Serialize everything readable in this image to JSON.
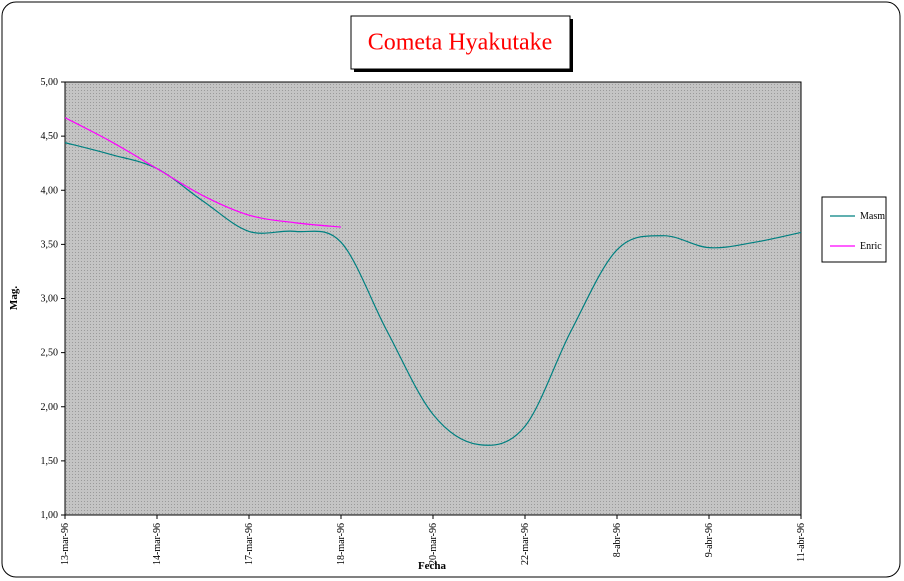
{
  "chart_data": {
    "type": "line",
    "title": "Cometa Hyakutake",
    "x_label": "Fecha",
    "y_label": "Mag.",
    "categories": [
      "13-mar-96",
      null,
      "14-mar-96",
      null,
      "17-mar-96",
      null,
      "18-mar-96",
      null,
      "20-mar-96",
      null,
      "22-mar-96",
      null,
      "8-abr-96",
      null,
      "9-abr-96",
      null,
      "11-abr-96"
    ],
    "series": [
      {
        "name": "Masm",
        "color": "#008080",
        "values": [
          4.44,
          4.33,
          4.2,
          3.9,
          3.62,
          3.62,
          3.52,
          2.7,
          1.93,
          1.65,
          1.82,
          2.7,
          3.45,
          3.58,
          3.47,
          3.52,
          3.61
        ]
      },
      {
        "name": "Enric",
        "color": "#ff00ff",
        "values": [
          4.67,
          4.45,
          4.2,
          3.95,
          3.77,
          3.7,
          3.66,
          null,
          null,
          null,
          null,
          null,
          null,
          null,
          null,
          null,
          null
        ]
      }
    ],
    "ylim": [
      1,
      5
    ],
    "yticks": [
      {
        "value": 1,
        "label": "1,00"
      },
      {
        "value": 1.5,
        "label": "1,50"
      },
      {
        "value": 2,
        "label": "2,00"
      },
      {
        "value": 2.5,
        "label": "2,50"
      },
      {
        "value": 3,
        "label": "3,00"
      },
      {
        "value": 3.5,
        "label": "3,50"
      },
      {
        "value": 4,
        "label": "4,00"
      },
      {
        "value": 4.5,
        "label": "4,50"
      },
      {
        "value": 5,
        "label": "5,00"
      }
    ],
    "smooth": true,
    "plot_background": "#c0c0c0",
    "legend": "right"
  }
}
